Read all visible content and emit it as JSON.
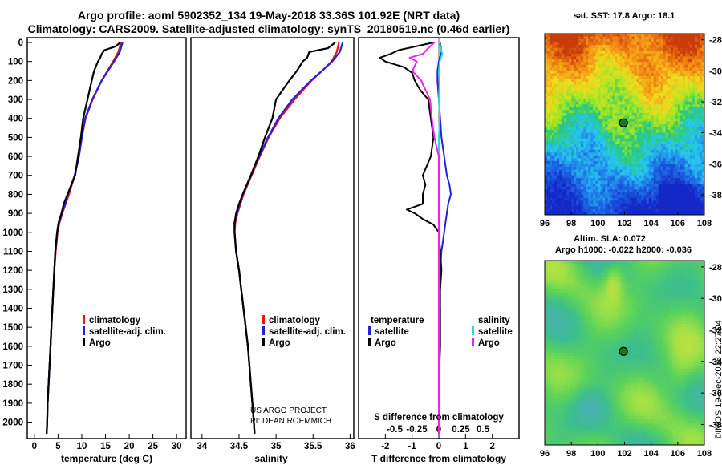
{
  "title_line1": "Argo profile: aoml 5902352_134 19-May-2018 33.36S 101.92E (NRT data)",
  "title_line2": "Climatology: CARS2009. Satellite-adjusted climatology: synTS_20180519.nc (0.46d earlier)",
  "colors": {
    "climatology": "#ee1111",
    "satellite_adj": "#2222dd",
    "argo": "#000000",
    "salinity_satellite": "#22dddd",
    "salinity_argo": "#ee22ee"
  },
  "legend": {
    "climatology": "climatology",
    "satellite_adj": "satellite-adj. clim.",
    "argo": "Argo",
    "diff_temperature": "temperature",
    "diff_salinity": "salinity",
    "diff_satellite": "satellite",
    "diff_argo": "Argo"
  },
  "credits": {
    "line1": "US ARGO PROJECT",
    "line2": "PI: DEAN ROEMMICH"
  },
  "maps": {
    "sst_title": "sat. SST: 17.8 Argo: 18.1",
    "sla_title_line1": "Altim. SLA: 0.072",
    "sla_title_line2": "Argo h1000: -0.022 h2000: -0.036",
    "lon_ticks": [
      "96",
      "98",
      "100",
      "102",
      "104",
      "106",
      "108"
    ],
    "lat_ticks": [
      "-28",
      "-30",
      "-32",
      "-34",
      "-36",
      "-38"
    ],
    "float_lon": 101.92,
    "float_lat": -33.36,
    "lon_range": [
      96,
      108
    ],
    "lat_range": [
      -39.3,
      -27.6
    ]
  },
  "timestamp": "©IMOS 19-Dec-2018 22:27:04",
  "chart_data": [
    {
      "type": "line",
      "name": "temperature",
      "xlabel": "temperature (deg C)",
      "ylabel": "",
      "xlim": [
        -1.5,
        32
      ],
      "ylim": [
        2080,
        0
      ],
      "xticks": [
        0,
        5,
        10,
        15,
        20,
        25,
        30
      ],
      "xtick_labels": [
        "0",
        "5",
        "10",
        "15",
        "20",
        "25",
        "30"
      ],
      "yticks": [
        0,
        100,
        200,
        300,
        400,
        500,
        600,
        700,
        800,
        900,
        1000,
        1100,
        1200,
        1300,
        1400,
        1500,
        1600,
        1700,
        1800,
        1900,
        2000
      ],
      "ytick_labels": [
        "0",
        "100",
        "200",
        "300",
        "400",
        "500",
        "600",
        "700",
        "800",
        "900",
        "1000",
        "1100",
        "1200",
        "1300",
        "1400",
        "1500",
        "1600",
        "1700",
        "1800",
        "1900",
        "2000"
      ],
      "series": [
        {
          "name": "climatology",
          "depth": [
            0,
            50,
            100,
            150,
            200,
            300,
            400,
            500,
            600,
            700,
            800,
            850,
            900,
            950,
            1000,
            1100,
            1200,
            1300,
            1400,
            1500,
            1600,
            1700,
            1800,
            1900,
            2000,
            2060
          ],
          "values": [
            18.3,
            17.7,
            16.6,
            15.4,
            14.2,
            12.3,
            10.8,
            10.0,
            9.4,
            8.5,
            7.3,
            6.6,
            5.9,
            5.3,
            4.9,
            4.5,
            4.2,
            4.0,
            3.8,
            3.6,
            3.4,
            3.2,
            3.0,
            2.8,
            2.7,
            2.6
          ]
        },
        {
          "name": "satellite-adj. clim.",
          "depth": [
            0,
            50,
            100,
            150,
            200,
            300,
            400,
            500,
            600,
            700,
            800,
            850,
            900,
            950,
            1000,
            1100,
            1200,
            1300,
            1400,
            1500,
            1600,
            1700,
            1800,
            1900,
            2000,
            2060
          ],
          "values": [
            18.6,
            18.0,
            16.8,
            15.5,
            14.2,
            12.2,
            10.7,
            10.0,
            9.4,
            8.5,
            7.1,
            6.5,
            5.8,
            5.2,
            4.8,
            4.4,
            4.2,
            4.0,
            3.8,
            3.6,
            3.4,
            3.2,
            3.0,
            2.8,
            2.7,
            2.6
          ]
        },
        {
          "name": "Argo",
          "depth": [
            0,
            20,
            40,
            60,
            80,
            100,
            150,
            200,
            300,
            400,
            500,
            600,
            700,
            800,
            850,
            900,
            950,
            1000,
            1100,
            1200,
            1300,
            1400,
            1500,
            1600,
            1700,
            1800,
            1900,
            2000,
            2060
          ],
          "values": [
            18.1,
            17.2,
            14.8,
            14.2,
            13.9,
            13.4,
            12.6,
            12.1,
            11.2,
            10.3,
            9.8,
            9.2,
            8.6,
            7.0,
            6.2,
            5.7,
            5.1,
            4.8,
            4.4,
            4.2,
            4.0,
            3.8,
            3.6,
            3.4,
            3.2,
            3.0,
            2.8,
            2.7,
            2.6
          ]
        }
      ]
    },
    {
      "type": "line",
      "name": "salinity",
      "xlabel": "salinity",
      "ylabel": "",
      "xlim": [
        33.85,
        36.05
      ],
      "ylim": [
        2080,
        0
      ],
      "xticks": [
        34,
        34.5,
        35,
        35.5,
        36
      ],
      "xtick_labels": [
        "34",
        "34.5",
        "35",
        "35.5",
        "36"
      ],
      "series": [
        {
          "name": "climatology",
          "depth": [
            0,
            50,
            100,
            150,
            200,
            300,
            400,
            500,
            600,
            700,
            800,
            850,
            900,
            950,
            1000,
            1100,
            1200,
            1300,
            1400,
            1500,
            1600,
            1700,
            1800,
            1900,
            2000,
            2060
          ],
          "values": [
            35.85,
            35.82,
            35.75,
            35.62,
            35.48,
            35.25,
            35.05,
            34.9,
            34.78,
            34.67,
            34.56,
            34.52,
            34.48,
            34.45,
            34.44,
            34.46,
            34.5,
            34.53,
            34.56,
            34.59,
            34.62,
            34.64,
            34.66,
            34.68,
            34.7,
            34.71
          ]
        },
        {
          "name": "satellite-adj. clim.",
          "depth": [
            0,
            50,
            100,
            150,
            200,
            300,
            400,
            500,
            600,
            700,
            800,
            850,
            900,
            950,
            1000,
            1100,
            1200,
            1300,
            1400,
            1500,
            1600,
            1700,
            1800,
            1900,
            2000,
            2060
          ],
          "values": [
            35.9,
            35.86,
            35.76,
            35.62,
            35.47,
            35.22,
            35.03,
            34.89,
            34.77,
            34.66,
            34.55,
            34.51,
            34.47,
            34.44,
            34.44,
            34.46,
            34.5,
            34.53,
            34.56,
            34.59,
            34.62,
            34.64,
            34.66,
            34.68,
            34.7,
            34.71
          ]
        },
        {
          "name": "Argo",
          "depth": [
            0,
            30,
            50,
            80,
            100,
            150,
            200,
            300,
            400,
            500,
            600,
            700,
            800,
            850,
            900,
            950,
            1000,
            1100,
            1200,
            1300,
            1400,
            1500,
            1600,
            1700,
            1800,
            1900,
            2000,
            2060
          ],
          "values": [
            35.8,
            35.7,
            35.45,
            35.42,
            35.36,
            35.28,
            35.18,
            35.0,
            34.95,
            34.85,
            34.76,
            34.66,
            34.55,
            34.5,
            34.46,
            34.44,
            34.44,
            34.46,
            34.5,
            34.53,
            34.56,
            34.59,
            34.62,
            34.64,
            34.66,
            34.68,
            34.7,
            34.71
          ]
        }
      ]
    },
    {
      "type": "line",
      "name": "difference",
      "xlabel": "T difference from climatology",
      "xlabel_top": "S difference from climatology",
      "xlim": [
        -3,
        3
      ],
      "ylim": [
        2080,
        0
      ],
      "xticks": [
        -2,
        -1,
        0,
        1,
        2
      ],
      "xtick_labels": [
        "-2",
        "-1",
        "0",
        "1",
        "2"
      ],
      "s_xticks": [
        -0.5,
        -0.25,
        0,
        0.25,
        0.5
      ],
      "s_xtick_labels": [
        "-0.5",
        "-0.25",
        "0",
        "0.25",
        "0.5"
      ],
      "series": [
        {
          "name": "temperature satellite",
          "depth": [
            0,
            50,
            100,
            150,
            200,
            300,
            400,
            500,
            600,
            700,
            750,
            800,
            850,
            900,
            950,
            1000,
            1100,
            1200,
            1400,
            1600,
            1800,
            2000,
            2060
          ],
          "values": [
            0.05,
            0.1,
            0.0,
            -0.05,
            -0.05,
            0.0,
            0.05,
            0.1,
            0.2,
            0.3,
            0.4,
            0.45,
            0.35,
            0.3,
            0.25,
            0.2,
            0.1,
            0.05,
            0.0,
            0.0,
            0.0,
            0.0,
            0.0
          ]
        },
        {
          "name": "temperature Argo",
          "depth": [
            0,
            40,
            60,
            80,
            100,
            130,
            160,
            200,
            250,
            300,
            400,
            500,
            600,
            700,
            750,
            800,
            850,
            880,
            900,
            930,
            960,
            1000,
            1100,
            1200,
            1300,
            1400,
            1600,
            1800,
            2000,
            2060
          ],
          "values": [
            -0.2,
            -1.5,
            -1.8,
            -2.2,
            -2.0,
            -1.3,
            -1.0,
            -0.9,
            -0.7,
            -0.4,
            -0.3,
            -0.2,
            -0.3,
            -0.6,
            -0.5,
            -0.6,
            -0.6,
            -1.2,
            -0.9,
            -0.6,
            -0.2,
            0.0,
            0.05,
            0.1,
            0.05,
            0.05,
            0.05,
            0.0,
            0.0,
            0.0
          ]
        },
        {
          "name": "salinity satellite",
          "depth": [
            0,
            30,
            60,
            100,
            150,
            200,
            300,
            400,
            500,
            600,
            700,
            800,
            900,
            1000,
            1100,
            1200,
            1300,
            1400,
            1500,
            1600,
            1700,
            1800,
            1900,
            2000,
            2060
          ],
          "values": [
            0.01,
            0.02,
            0.04,
            0.01,
            0.0,
            0.01,
            0.0,
            0.01,
            0.0,
            0.0,
            0.01,
            0.0,
            0.0,
            0.0,
            0.01,
            0.0,
            0.01,
            0.01,
            0.0,
            0.0,
            0.0,
            0.0,
            0.0,
            0.0,
            0.0
          ]
        },
        {
          "name": "salinity Argo",
          "depth": [
            0,
            30,
            60,
            80,
            100,
            150,
            200,
            300,
            400,
            500,
            600,
            700,
            800,
            900,
            1000,
            1200,
            1400,
            1600,
            1800,
            2000,
            2060
          ],
          "values": [
            -0.05,
            -0.12,
            -0.18,
            -0.33,
            -0.25,
            -0.3,
            -0.2,
            -0.1,
            -0.08,
            -0.05,
            0.0,
            0.0,
            0.0,
            0.0,
            0.0,
            0.0,
            0.0,
            0.0,
            0.0,
            0.0,
            0.0
          ]
        }
      ]
    },
    {
      "type": "heatmap",
      "name": "satellite SST map",
      "title": "sat. SST: 17.8 Argo: 18.1",
      "xlim": [
        96,
        108
      ],
      "ylim": [
        -39.3,
        -27.6
      ],
      "xtick_labels": [
        "96",
        "98",
        "100",
        "102",
        "104",
        "106",
        "108"
      ],
      "ytick_labels": [
        "-28",
        "-30",
        "-32",
        "-34",
        "-36",
        "-38"
      ]
    },
    {
      "type": "heatmap",
      "name": "altimeter SLA map",
      "title": "Altim. SLA: 0.072",
      "xlim": [
        96,
        108
      ],
      "ylim": [
        -39.3,
        -27.6
      ],
      "xtick_labels": [
        "96",
        "98",
        "100",
        "102",
        "104",
        "106",
        "108"
      ],
      "ytick_labels": [
        "-28",
        "-30",
        "-32",
        "-34",
        "-36",
        "-38"
      ]
    }
  ]
}
